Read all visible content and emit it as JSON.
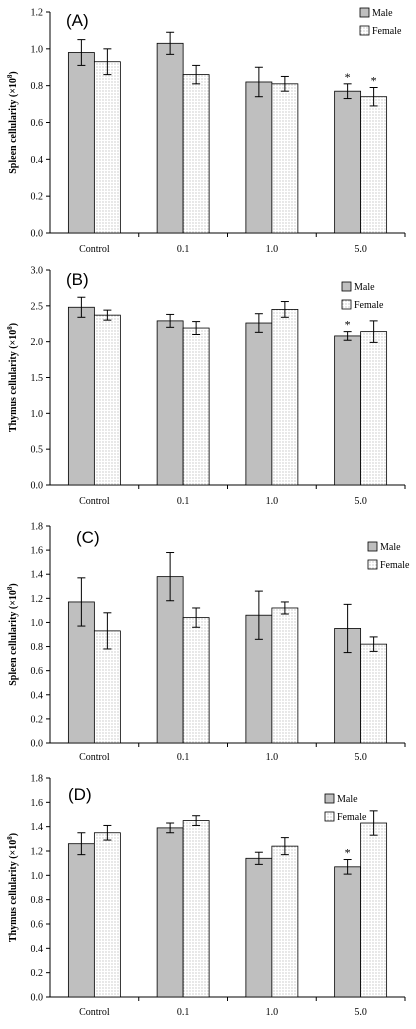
{
  "chart_data": [
    {
      "type": "bar",
      "panel_label": "(A)",
      "ylabel": "Spleen cellularity (×10",
      "ylabel_exp": "8",
      "ylabel_close": ")",
      "categories": [
        "Control",
        "0.1",
        "1.0",
        "5.0"
      ],
      "series": [
        {
          "name": "Male",
          "values": [
            0.98,
            1.03,
            0.82,
            0.77
          ],
          "errors": [
            0.07,
            0.06,
            0.08,
            0.04
          ],
          "sig": [
            "",
            "",
            "",
            "*"
          ]
        },
        {
          "name": "Female",
          "values": [
            0.93,
            0.86,
            0.81,
            0.74
          ],
          "errors": [
            0.07,
            0.05,
            0.04,
            0.05
          ],
          "sig": [
            "",
            "",
            "",
            "*"
          ]
        }
      ],
      "ylim": [
        0.0,
        1.2
      ],
      "yticks": [
        "0.0",
        "0.2",
        "0.4",
        "0.6",
        "0.8",
        "1.0",
        "1.2"
      ],
      "grid": false,
      "legend_position": "top-right"
    },
    {
      "type": "bar",
      "panel_label": "(B)",
      "ylabel": "Thymus cellularity (×10",
      "ylabel_exp": "8",
      "ylabel_close": ")",
      "categories": [
        "Control",
        "0.1",
        "1.0",
        "5.0"
      ],
      "series": [
        {
          "name": "Male",
          "values": [
            2.48,
            2.29,
            2.26,
            2.08
          ],
          "errors": [
            0.14,
            0.09,
            0.13,
            0.06
          ],
          "sig": [
            "",
            "",
            "",
            "*"
          ]
        },
        {
          "name": "Female",
          "values": [
            2.37,
            2.19,
            2.45,
            2.14
          ],
          "errors": [
            0.07,
            0.09,
            0.11,
            0.15
          ],
          "sig": [
            "",
            "",
            "",
            ""
          ]
        }
      ],
      "ylim": [
        0.0,
        3.0
      ],
      "yticks": [
        "0.0",
        "0.5",
        "1.0",
        "1.5",
        "2.0",
        "2.5",
        "3.0"
      ],
      "grid": false,
      "legend_position": "top-right"
    },
    {
      "type": "bar",
      "panel_label": "(C)",
      "ylabel": "Spleen cellularity (×10",
      "ylabel_exp": "8",
      "ylabel_close": ")",
      "categories": [
        "Control",
        "0.1",
        "1.0",
        "5.0"
      ],
      "series": [
        {
          "name": "Male",
          "values": [
            1.17,
            1.38,
            1.06,
            0.95
          ],
          "errors": [
            0.2,
            0.2,
            0.2,
            0.2
          ],
          "sig": [
            "",
            "",
            "",
            ""
          ]
        },
        {
          "name": "Female",
          "values": [
            0.93,
            1.04,
            1.12,
            0.82
          ],
          "errors": [
            0.15,
            0.08,
            0.05,
            0.06
          ],
          "sig": [
            "",
            "",
            "",
            ""
          ]
        }
      ],
      "ylim": [
        0.0,
        1.8
      ],
      "yticks": [
        "0.0",
        "0.2",
        "0.4",
        "0.6",
        "0.8",
        "1.0",
        "1.2",
        "1.4",
        "1.6",
        "1.8"
      ],
      "grid": false,
      "legend_position": "top-right"
    },
    {
      "type": "bar",
      "panel_label": "(D)",
      "ylabel": "Thymus cellularity (×10",
      "ylabel_exp": "8",
      "ylabel_close": ")",
      "categories": [
        "Control",
        "0.1",
        "1.0",
        "5.0"
      ],
      "series": [
        {
          "name": "Male",
          "values": [
            1.26,
            1.39,
            1.14,
            1.07
          ],
          "errors": [
            0.09,
            0.04,
            0.05,
            0.06
          ],
          "sig": [
            "",
            "",
            "",
            "*"
          ]
        },
        {
          "name": "Female",
          "values": [
            1.35,
            1.45,
            1.24,
            1.43
          ],
          "errors": [
            0.06,
            0.04,
            0.07,
            0.1
          ],
          "sig": [
            "",
            "",
            "",
            ""
          ]
        }
      ],
      "ylim": [
        0.0,
        1.8
      ],
      "yticks": [
        "0.0",
        "0.2",
        "0.4",
        "0.6",
        "0.8",
        "1.0",
        "1.2",
        "1.4",
        "1.6",
        "1.8"
      ],
      "grid": false,
      "legend_position": "top-right"
    }
  ],
  "colors": {
    "male_fill": "#bfbfbf",
    "female_fill": "#ffffff",
    "stroke": "#000000"
  }
}
